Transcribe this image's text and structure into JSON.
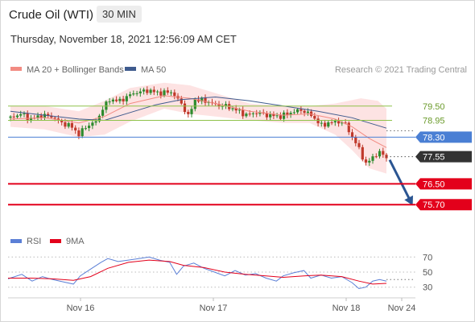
{
  "header": {
    "title": "Crude Oil (WTI)",
    "timeframe": "30 MIN",
    "datetime": "Thursday, November 18, 2021 12:56:09 AM CET"
  },
  "legend": {
    "ma20_label": "MA 20 + Bollinger Bands",
    "ma50_label": "MA 50",
    "credit": "Research © 2021 Trading Central",
    "ma20_color": "#f28b82",
    "ma50_color": "#3f5b8e"
  },
  "rsi_legend": {
    "rsi_label": "RSI",
    "ma_label": "9MA",
    "rsi_color": "#5b7fd6",
    "ma_color": "#e3001b"
  },
  "colors": {
    "bull": "#2e8b2e",
    "bear": "#c0392b",
    "resistance": "#8fc24a",
    "pivot": "#4a7fd4",
    "support": "#e3001b",
    "current": "#333333",
    "band": "#fde0e0",
    "arrow": "#2b5592"
  },
  "chart_data": [
    {
      "type": "candlestick",
      "title": "Crude Oil (WTI)",
      "timeframe": "30 MIN",
      "ylim": [
        74.9,
        80.3
      ],
      "x_ticks": [
        "Nov 16",
        "Nov 17",
        "Nov 18",
        "Nov 24"
      ],
      "price_levels": [
        {
          "value": 79.5,
          "label": "79.50",
          "kind": "resistance"
        },
        {
          "value": 78.95,
          "label": "78.95",
          "kind": "resistance"
        },
        {
          "value": 78.3,
          "label": "78.30",
          "kind": "pivot"
        },
        {
          "value": 77.55,
          "label": "77.55",
          "kind": "current"
        },
        {
          "value": 76.5,
          "label": "76.50",
          "kind": "support"
        },
        {
          "value": 75.7,
          "label": "75.70",
          "kind": "support"
        }
      ],
      "close_path": [
        [
          0,
          79.05
        ],
        [
          6,
          79.2
        ],
        [
          12,
          79.0
        ],
        [
          18,
          79.15
        ],
        [
          24,
          79.1
        ],
        [
          30,
          78.85
        ],
        [
          36,
          78.7
        ],
        [
          40,
          78.4
        ],
        [
          44,
          78.7
        ],
        [
          50,
          78.9
        ],
        [
          54,
          79.4
        ],
        [
          58,
          79.75
        ],
        [
          64,
          79.7
        ],
        [
          72,
          80.0
        ],
        [
          80,
          80.1
        ],
        [
          88,
          80.0
        ],
        [
          94,
          80.05
        ],
        [
          100,
          79.6
        ],
        [
          104,
          79.1
        ],
        [
          108,
          79.75
        ],
        [
          114,
          79.7
        ],
        [
          120,
          79.55
        ],
        [
          126,
          79.5
        ],
        [
          132,
          79.35
        ],
        [
          138,
          79.15
        ],
        [
          144,
          79.25
        ],
        [
          150,
          79.15
        ],
        [
          158,
          79.1
        ],
        [
          164,
          79.25
        ],
        [
          170,
          79.35
        ],
        [
          176,
          79.15
        ],
        [
          182,
          78.75
        ],
        [
          186,
          78.85
        ],
        [
          192,
          78.9
        ],
        [
          196,
          78.8
        ],
        [
          200,
          78.3
        ],
        [
          204,
          77.85
        ],
        [
          208,
          77.25
        ],
        [
          212,
          77.55
        ],
        [
          216,
          77.7
        ],
        [
          220,
          77.55
        ]
      ],
      "ma20_path": [
        [
          0,
          79.0
        ],
        [
          20,
          79.05
        ],
        [
          40,
          78.85
        ],
        [
          55,
          79.1
        ],
        [
          70,
          79.6
        ],
        [
          90,
          79.9
        ],
        [
          105,
          79.8
        ],
        [
          120,
          79.6
        ],
        [
          140,
          79.3
        ],
        [
          160,
          79.15
        ],
        [
          175,
          79.2
        ],
        [
          190,
          79.0
        ],
        [
          200,
          78.7
        ],
        [
          210,
          78.25
        ],
        [
          220,
          77.9
        ]
      ],
      "ma50_path": [
        [
          0,
          79.3
        ],
        [
          20,
          79.15
        ],
        [
          40,
          79.0
        ],
        [
          55,
          78.95
        ],
        [
          70,
          79.25
        ],
        [
          85,
          79.55
        ],
        [
          100,
          79.75
        ],
        [
          120,
          79.85
        ],
        [
          140,
          79.7
        ],
        [
          160,
          79.5
        ],
        [
          180,
          79.3
        ],
        [
          200,
          79.05
        ],
        [
          220,
          78.65
        ]
      ],
      "bollinger_upper_path": [
        [
          0,
          79.5
        ],
        [
          20,
          79.5
        ],
        [
          40,
          79.3
        ],
        [
          55,
          79.7
        ],
        [
          70,
          80.2
        ],
        [
          90,
          80.4
        ],
        [
          105,
          80.3
        ],
        [
          120,
          80.0
        ],
        [
          140,
          79.6
        ],
        [
          160,
          79.5
        ],
        [
          175,
          79.5
        ],
        [
          190,
          79.6
        ],
        [
          205,
          79.8
        ],
        [
          215,
          79.7
        ],
        [
          220,
          79.4
        ]
      ],
      "bollinger_lower_path": [
        [
          0,
          78.7
        ],
        [
          20,
          78.6
        ],
        [
          40,
          78.3
        ],
        [
          55,
          78.4
        ],
        [
          70,
          78.9
        ],
        [
          90,
          79.4
        ],
        [
          105,
          79.2
        ],
        [
          120,
          79.1
        ],
        [
          140,
          78.95
        ],
        [
          160,
          78.85
        ],
        [
          175,
          78.85
        ],
        [
          190,
          78.4
        ],
        [
          200,
          77.8
        ],
        [
          210,
          77.1
        ],
        [
          220,
          76.9
        ]
      ],
      "forecast": {
        "from": 77.55,
        "to": 75.7
      }
    },
    {
      "type": "line",
      "name": "RSI",
      "ylim": [
        20,
        80
      ],
      "y_ticks": [
        70,
        50,
        30
      ],
      "series": [
        {
          "name": "RSI",
          "points": [
            [
              0,
              41
            ],
            [
              8,
              47
            ],
            [
              14,
              38
            ],
            [
              20,
              44
            ],
            [
              26,
              40
            ],
            [
              32,
              37
            ],
            [
              38,
              34
            ],
            [
              42,
              45
            ],
            [
              48,
              54
            ],
            [
              54,
              63
            ],
            [
              58,
              68
            ],
            [
              64,
              64
            ],
            [
              70,
              66
            ],
            [
              76,
              68
            ],
            [
              82,
              70
            ],
            [
              88,
              66
            ],
            [
              94,
              63
            ],
            [
              98,
              47
            ],
            [
              102,
              58
            ],
            [
              108,
              62
            ],
            [
              114,
              55
            ],
            [
              120,
              50
            ],
            [
              126,
              45
            ],
            [
              132,
              52
            ],
            [
              138,
              46
            ],
            [
              144,
              48
            ],
            [
              150,
              42
            ],
            [
              156,
              38
            ],
            [
              160,
              45
            ],
            [
              166,
              49
            ],
            [
              172,
              52
            ],
            [
              176,
              42
            ],
            [
              182,
              46
            ],
            [
              188,
              42
            ],
            [
              194,
              44
            ],
            [
              200,
              36
            ],
            [
              204,
              28
            ],
            [
              208,
              30
            ],
            [
              212,
              38
            ],
            [
              216,
              40
            ],
            [
              220,
              38
            ]
          ]
        },
        {
          "name": "9MA",
          "points": [
            [
              0,
              42
            ],
            [
              14,
              42
            ],
            [
              26,
              41
            ],
            [
              38,
              39
            ],
            [
              48,
              44
            ],
            [
              58,
              55
            ],
            [
              70,
              63
            ],
            [
              82,
              66
            ],
            [
              94,
              64
            ],
            [
              102,
              59
            ],
            [
              114,
              56
            ],
            [
              126,
              50
            ],
            [
              138,
              47
            ],
            [
              150,
              45
            ],
            [
              160,
              43
            ],
            [
              172,
              45
            ],
            [
              182,
              46
            ],
            [
              194,
              44
            ],
            [
              204,
              38
            ],
            [
              212,
              34
            ],
            [
              220,
              35
            ]
          ]
        }
      ]
    }
  ]
}
